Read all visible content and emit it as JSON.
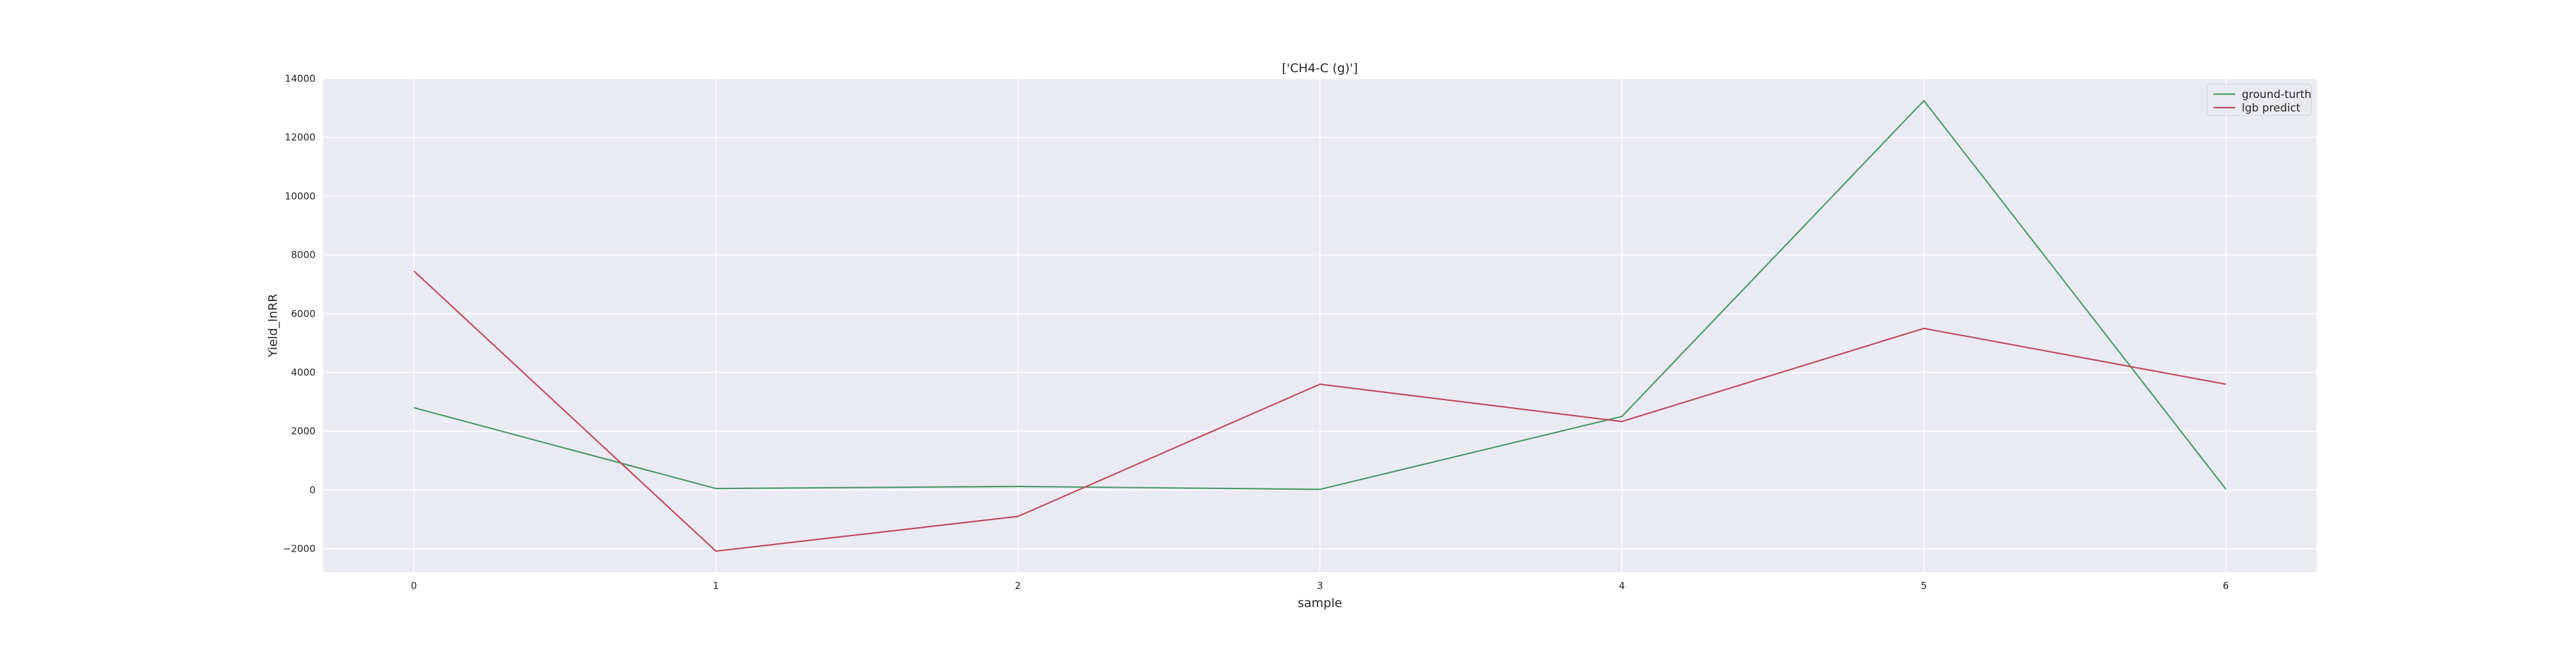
{
  "chart_data": {
    "type": "line",
    "title": "['CH4-C (g)']",
    "xlabel": "sample",
    "ylabel": "Yield_lnRR",
    "x": [
      0,
      1,
      2,
      3,
      4,
      5,
      6
    ],
    "xlim": [
      -0.3,
      6.3
    ],
    "ylim": [
      -2800,
      14000
    ],
    "xticks": [
      0,
      1,
      2,
      3,
      4,
      5,
      6
    ],
    "yticks": [
      -2000,
      0,
      2000,
      4000,
      6000,
      8000,
      10000,
      12000,
      14000
    ],
    "ytick_labels": [
      "−2000",
      "0",
      "2000",
      "4000",
      "6000",
      "8000",
      "10000",
      "12000",
      "14000"
    ],
    "grid": true,
    "legend_position": "top-right",
    "series": [
      {
        "name": "ground-turth",
        "color": "#4a9a66",
        "values": [
          2800,
          50,
          120,
          20,
          2500,
          13250,
          30
        ]
      },
      {
        "name": "lgb predict",
        "color": "#c04a5a",
        "values": [
          7450,
          -2080,
          -900,
          3600,
          2330,
          5500,
          3600
        ]
      }
    ]
  },
  "colors": {
    "plot_background": "#eaeaf2",
    "grid": "#ffffff"
  }
}
